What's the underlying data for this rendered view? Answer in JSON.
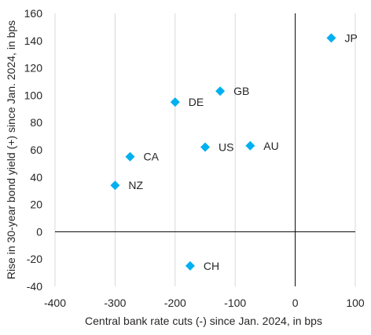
{
  "chart_data": {
    "type": "scatter",
    "title": "",
    "xlabel": "Central bank rate cuts (-) since Jan. 2024, in bps",
    "ylabel": "Rise in 30-year bond yield (+) since Jan. 2024, in bps",
    "xlim": [
      -400,
      100
    ],
    "ylim": [
      -40,
      160
    ],
    "xticks": [
      -400,
      -300,
      -200,
      -100,
      0,
      100
    ],
    "yticks": [
      -40,
      -20,
      0,
      20,
      40,
      60,
      80,
      100,
      120,
      140,
      160
    ],
    "grid": "vertical",
    "marker": "diamond",
    "marker_color": "#00b0f0",
    "points": [
      {
        "label": "JP",
        "x": 60,
        "y": 142
      },
      {
        "label": "GB",
        "x": -125,
        "y": 103
      },
      {
        "label": "DE",
        "x": -200,
        "y": 95
      },
      {
        "label": "US",
        "x": -150,
        "y": 62
      },
      {
        "label": "AU",
        "x": -75,
        "y": 63
      },
      {
        "label": "CA",
        "x": -275,
        "y": 55
      },
      {
        "label": "NZ",
        "x": -300,
        "y": 34
      },
      {
        "label": "CH",
        "x": -175,
        "y": -25
      }
    ]
  }
}
